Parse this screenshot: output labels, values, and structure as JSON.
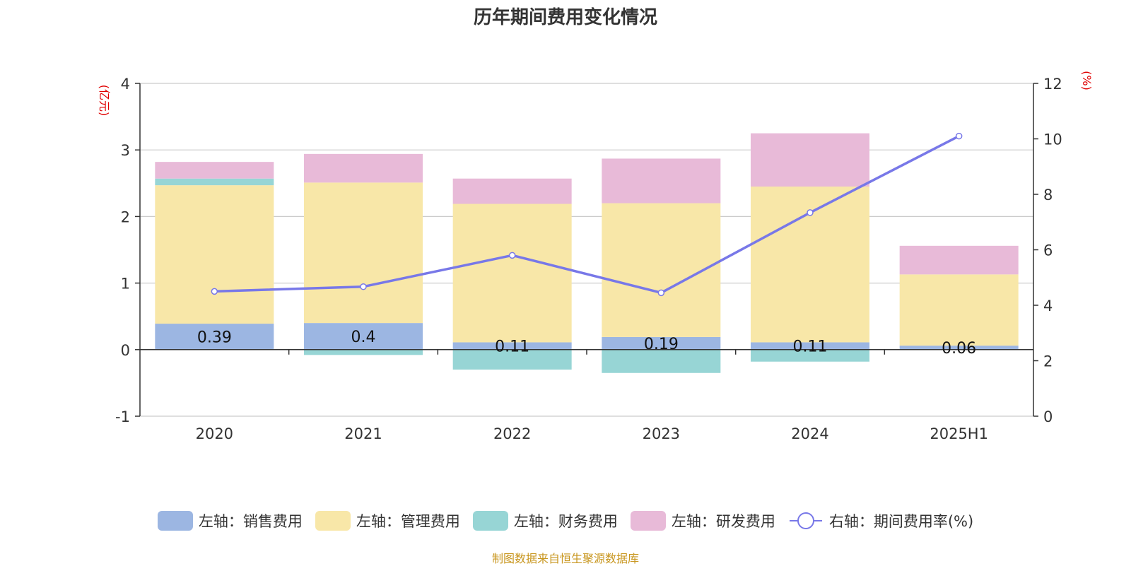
{
  "chart_data": {
    "type": "bar",
    "title": "历年期间费用变化情况",
    "categories": [
      "2020",
      "2021",
      "2022",
      "2023",
      "2024",
      "2025H1"
    ],
    "left_axis": {
      "unit_label": "(亿元)",
      "ylim": [
        -1,
        4
      ],
      "ticks": [
        -1,
        0,
        1,
        2,
        3,
        4
      ]
    },
    "right_axis": {
      "unit_label": "(%)",
      "ylim": [
        0,
        12
      ],
      "ticks": [
        0,
        2,
        4,
        6,
        8,
        10,
        12
      ]
    },
    "grid": true,
    "stacked": true,
    "series": [
      {
        "name": "左轴：销售费用",
        "axis": "left",
        "color": "#9cb6e2",
        "values": [
          0.39,
          0.4,
          0.11,
          0.19,
          0.11,
          0.06
        ],
        "labels": [
          "0.39",
          "0.4",
          "0.11",
          "0.19",
          "0.11",
          "0.06"
        ]
      },
      {
        "name": "左轴：管理费用",
        "axis": "left",
        "color": "#f8e7a8",
        "values": [
          2.08,
          2.11,
          2.08,
          2.01,
          2.34,
          1.07
        ]
      },
      {
        "name": "左轴：财务费用",
        "axis": "left",
        "color": "#97d5d5",
        "values": [
          0.1,
          -0.08,
          -0.3,
          -0.35,
          -0.18,
          0.0
        ]
      },
      {
        "name": "左轴：研发费用",
        "axis": "left",
        "color": "#e8bad8",
        "values": [
          0.25,
          0.43,
          0.38,
          0.67,
          0.8,
          0.43
        ]
      }
    ],
    "line_series": {
      "name": "右轴：期间费用率(%)",
      "axis": "right",
      "color": "#7878e8",
      "values": [
        4.5,
        4.67,
        5.8,
        4.45,
        7.34,
        10.1
      ]
    },
    "legend_position": "bottom"
  },
  "source_note": "制图数据来自恒生聚源数据库"
}
